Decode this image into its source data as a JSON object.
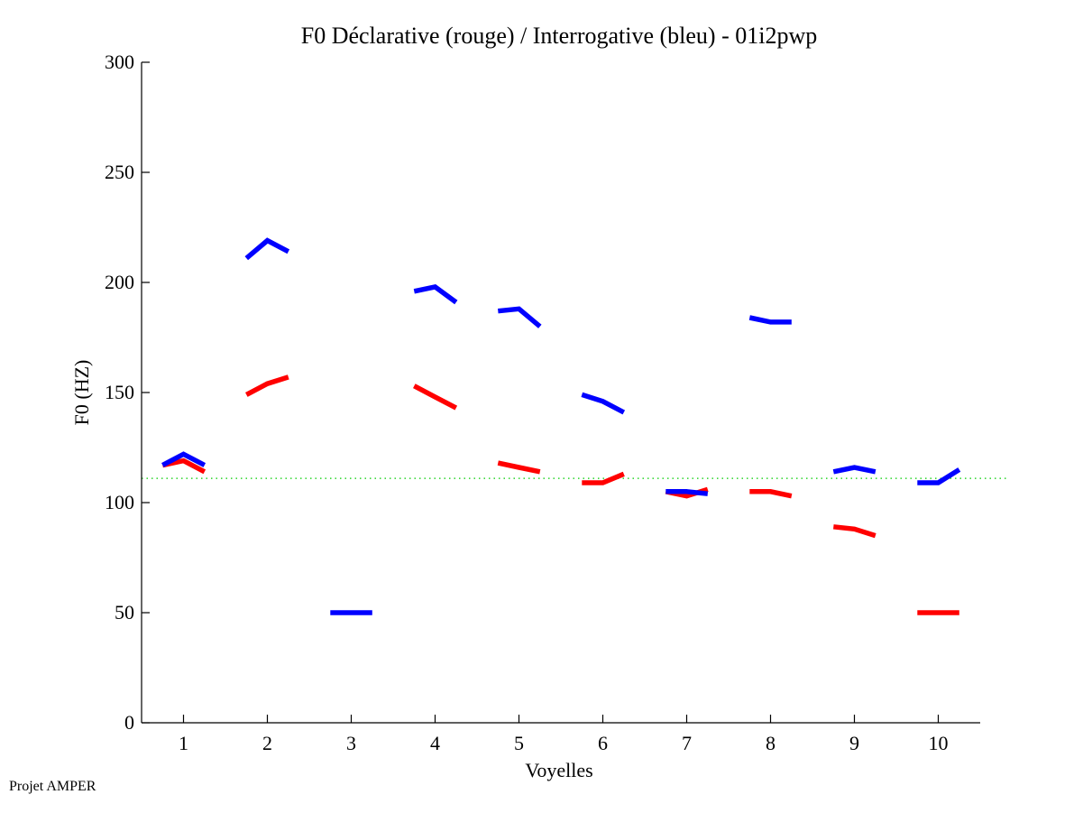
{
  "chart_data": {
    "type": "line",
    "title": "F0 Déclarative (rouge) / Interrogative (bleu) - 01i2pwp",
    "xlabel": "Voyelles",
    "ylabel": "F0 (HZ)",
    "xlim": [
      0.5,
      10.5
    ],
    "ylim": [
      0,
      300
    ],
    "xticks": [
      1,
      2,
      3,
      4,
      5,
      6,
      7,
      8,
      9,
      10
    ],
    "yticks": [
      0,
      50,
      100,
      150,
      200,
      250,
      300
    ],
    "reference_line": {
      "y": 111,
      "color": "#00cc00",
      "style": "dotted"
    },
    "series": [
      {
        "name": "Déclarative",
        "color": "#ff0000",
        "segments": [
          {
            "vowel": 1,
            "values": [
              117,
              119,
              114
            ]
          },
          {
            "vowel": 2,
            "values": [
              149,
              154,
              157
            ]
          },
          {
            "vowel": 4,
            "values": [
              153,
              148,
              143
            ]
          },
          {
            "vowel": 5,
            "values": [
              118,
              116,
              114
            ]
          },
          {
            "vowel": 6,
            "values": [
              109,
              109,
              113
            ]
          },
          {
            "vowel": 7,
            "values": [
              105,
              103,
              106
            ]
          },
          {
            "vowel": 8,
            "values": [
              105,
              105,
              103
            ]
          },
          {
            "vowel": 9,
            "values": [
              89,
              88,
              85
            ]
          },
          {
            "vowel": 10,
            "values": [
              50,
              50,
              50
            ]
          }
        ]
      },
      {
        "name": "Interrogative",
        "color": "#0000ff",
        "segments": [
          {
            "vowel": 1,
            "values": [
              117,
              122,
              117
            ]
          },
          {
            "vowel": 2,
            "values": [
              211,
              219,
              214
            ]
          },
          {
            "vowel": 3,
            "values": [
              50,
              50,
              50
            ]
          },
          {
            "vowel": 4,
            "values": [
              196,
              198,
              191
            ]
          },
          {
            "vowel": 5,
            "values": [
              187,
              188,
              180
            ]
          },
          {
            "vowel": 6,
            "values": [
              149,
              146,
              141
            ]
          },
          {
            "vowel": 7,
            "values": [
              105,
              105,
              104
            ]
          },
          {
            "vowel": 8,
            "values": [
              184,
              182,
              182
            ]
          },
          {
            "vowel": 9,
            "values": [
              114,
              116,
              114
            ]
          },
          {
            "vowel": 10,
            "values": [
              109,
              109,
              115
            ]
          }
        ]
      }
    ]
  },
  "footer": {
    "text": "Projet AMPER"
  }
}
